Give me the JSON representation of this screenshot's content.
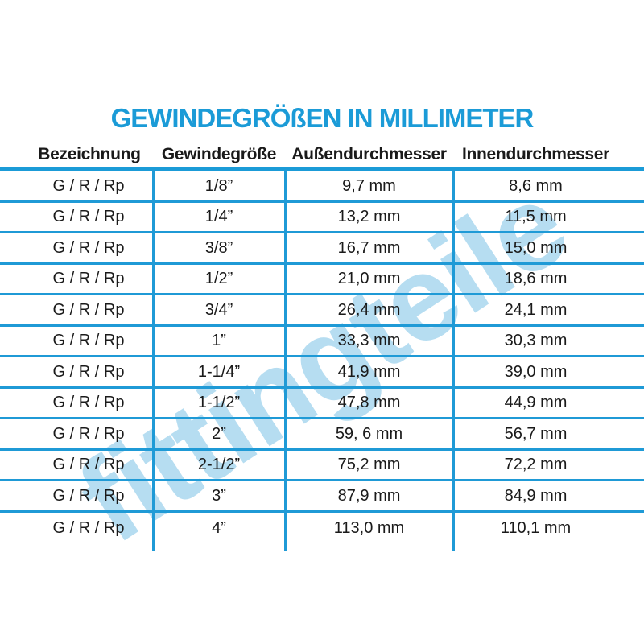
{
  "page": {
    "title": "GEWINDEGRÖßEN IN MILLIMETER",
    "title_color": "#1b9bd7"
  },
  "watermark": {
    "text": "fittingteile",
    "color": "#b6ddf1"
  },
  "colors": {
    "accent_blue": "#1b9bd7",
    "grid_line_blue": "#1f9ad6",
    "text_black": "#1a1a1a",
    "watermark_blue": "#b6ddf1",
    "background": "#ffffff"
  },
  "chart_data": {
    "type": "table",
    "title": "GEWINDEGRÖßEN IN MILLIMETER",
    "columns": [
      "Bezeichnung",
      "Gewindegröße",
      "Außendurchmesser",
      "Innendurchmesser"
    ],
    "rows": [
      [
        "G / R / Rp",
        "1/8”",
        "9,7 mm",
        "8,6 mm"
      ],
      [
        "G / R / Rp",
        "1/4”",
        "13,2 mm",
        "11,5 mm"
      ],
      [
        "G / R / Rp",
        "3/8”",
        "16,7 mm",
        "15,0 mm"
      ],
      [
        "G / R / Rp",
        "1/2”",
        "21,0 mm",
        "18,6 mm"
      ],
      [
        "G / R / Rp",
        "3/4”",
        "26,4 mm",
        "24,1 mm"
      ],
      [
        "G / R / Rp",
        "1”",
        "33,3 mm",
        "30,3 mm"
      ],
      [
        "G / R / Rp",
        "1-1/4”",
        "41,9 mm",
        "39,0 mm"
      ],
      [
        "G / R / Rp",
        "1-1/2”",
        "47,8 mm",
        "44,9 mm"
      ],
      [
        "G / R / Rp",
        "2”",
        "59, 6 mm",
        "56,7 mm"
      ],
      [
        "G / R / Rp",
        "2-1/2”",
        "75,2 mm",
        "72,2 mm"
      ],
      [
        "G / R / Rp",
        "3”",
        "87,9 mm",
        "84,9 mm"
      ],
      [
        "G / R / Rp",
        "4”",
        "113,0 mm",
        "110,1 mm"
      ]
    ],
    "layout": {
      "grid": "horizontal rules full width, 3 vertical dividers, no outer side borders",
      "header_rule_thickness_px": 5,
      "row_rule_thickness_px": 3
    }
  }
}
